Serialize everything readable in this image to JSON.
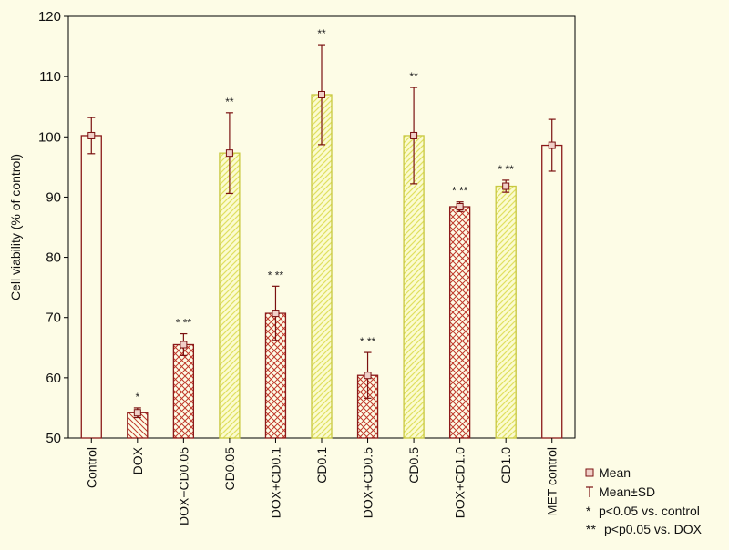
{
  "chart_data": {
    "type": "bar",
    "title": "",
    "xlabel": "",
    "ylabel": "Cell viability (% of control)",
    "ylim": [
      50,
      120
    ],
    "yticks": [
      50,
      60,
      70,
      80,
      90,
      100,
      110,
      120
    ],
    "grid": false,
    "categories": [
      "Control",
      "DOX",
      "DOX+CD0.05",
      "CD0.05",
      "DOX+CD0.1",
      "CD0.1",
      "DOX+CD0.5",
      "CD0.5",
      "DOX+CD1.0",
      "CD1.0",
      "MET control"
    ],
    "values": [
      100.2,
      54.2,
      65.5,
      97.3,
      70.7,
      107.0,
      60.4,
      100.2,
      88.4,
      91.8,
      98.6
    ],
    "sd": [
      3.0,
      0.8,
      1.8,
      6.7,
      4.5,
      8.3,
      3.8,
      8.0,
      0.8,
      1.0,
      4.3
    ],
    "significance": [
      "",
      "*",
      "* **",
      "**",
      "* **",
      "**",
      "* **",
      "**",
      "* **",
      "* **",
      ""
    ],
    "groups": [
      "control",
      "dox",
      "dox",
      "cd",
      "dox",
      "cd",
      "dox",
      "cd",
      "dox",
      "cd",
      "control"
    ],
    "colors": {
      "bar_stroke": "#8b1a1a",
      "dox_hatch": "#c0392b",
      "cd_fill": "#fbfbd0",
      "cd_hatch": "#e0e060",
      "cd_stroke": "#c8c840",
      "error": "#7a1010",
      "background": "#fdfce6"
    },
    "legend": {
      "position": "bottom-right",
      "entries": [
        "Mean",
        "Mean±SD",
        "p<0.05 vs. control",
        "p<p0.05 vs. DOX"
      ],
      "symbols": [
        "",
        "",
        "*",
        "**"
      ]
    }
  }
}
